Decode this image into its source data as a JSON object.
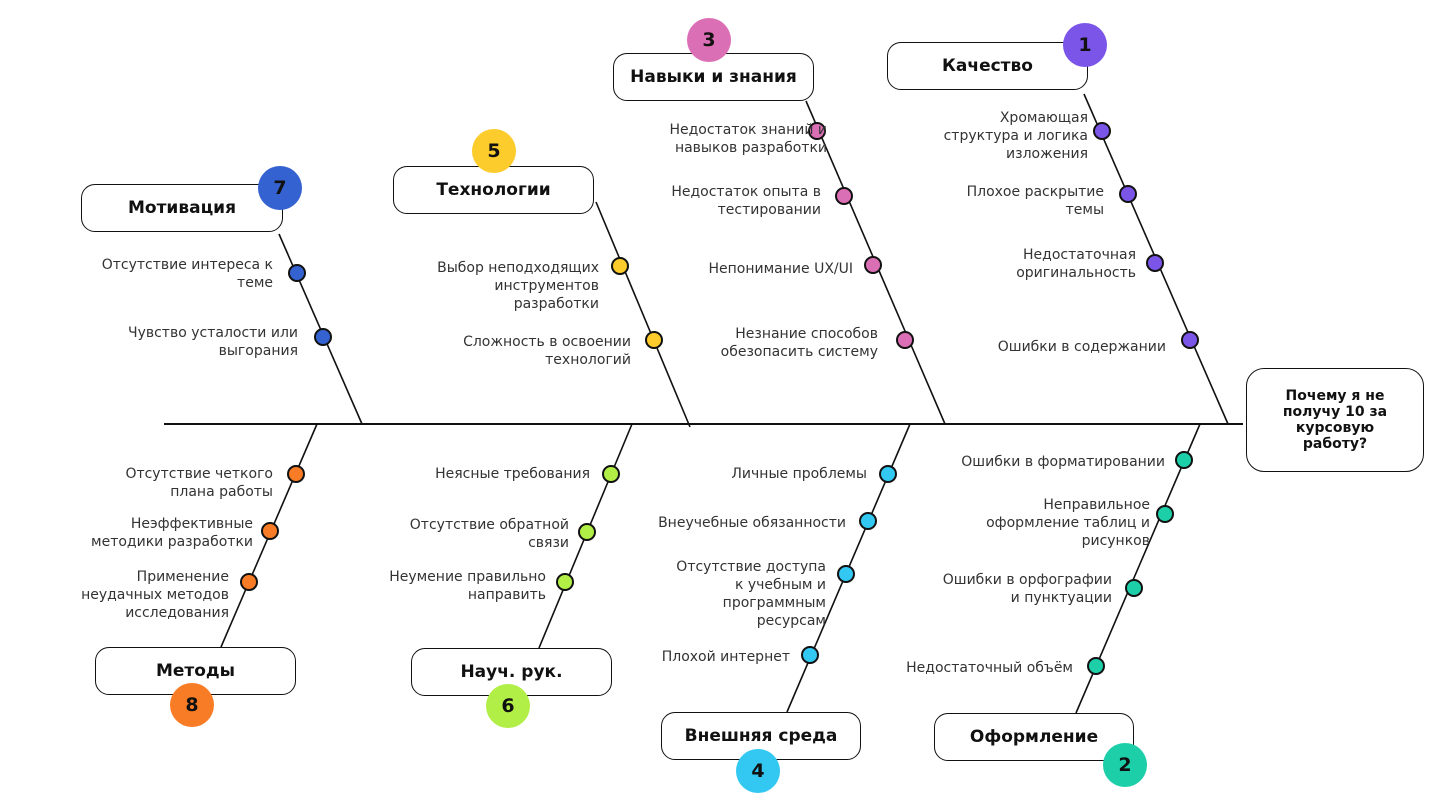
{
  "problem": "Почему я не получу 10 за курсовую работу?",
  "categories": [
    {
      "key": "kachestvo",
      "number": "1",
      "title": "Качество",
      "color": "#7b55e8",
      "causes": [
        "Хромающая структура и логика изложения",
        "Плохое раскрытие темы",
        "Недостаточная оригинальность",
        "Ошибки в содержании"
      ]
    },
    {
      "key": "oformlenie",
      "number": "2",
      "title": "Оформление",
      "color": "#1ccfa9",
      "causes": [
        "Ошибки в форматировании",
        "Неправильное оформление таблиц и рисунков",
        "Ошибки в орфографии и пунктуации",
        "Недостаточный объём"
      ]
    },
    {
      "key": "navyki",
      "number": "3",
      "title": "Навыки и знания",
      "color": "#db6fb5",
      "causes": [
        "Недостаток знаний и навыков разработки",
        "Недостаток опыта в тестировании",
        "Непонимание UX/UI",
        "Незнание способов обезопасить систему"
      ]
    },
    {
      "key": "sreda",
      "number": "4",
      "title": "Внешняя среда",
      "color": "#32c8f2",
      "causes": [
        "Личные проблемы",
        "Внеучебные обязанности",
        "Отсутствие доступа к учебным и программным ресурсам",
        "Плохой интернет"
      ]
    },
    {
      "key": "tehnologii",
      "number": "5",
      "title": "Технологии",
      "color": "#fccb2c",
      "causes": [
        "Выбор неподходящих инструментов разработки",
        "Сложность в освоении технологий"
      ]
    },
    {
      "key": "nauchruk",
      "number": "6",
      "title": "Науч. рук.",
      "color": "#b1ee46",
      "causes": [
        "Неясные требования",
        "Отсутствие обратной связи",
        "Неумение правильно направить"
      ]
    },
    {
      "key": "motivatsiya",
      "number": "7",
      "title": "Мотивация",
      "color": "#3462d1",
      "causes": [
        "Отсутствие интереса к теме",
        "Чувство усталости или выгорания"
      ]
    },
    {
      "key": "metody",
      "number": "8",
      "title": "Методы",
      "color": "#f87c26",
      "causes": [
        "Отсутствие четкого плана работы",
        "Неэффективные методики разработки",
        "Применение неудачных методов исследования"
      ]
    }
  ]
}
